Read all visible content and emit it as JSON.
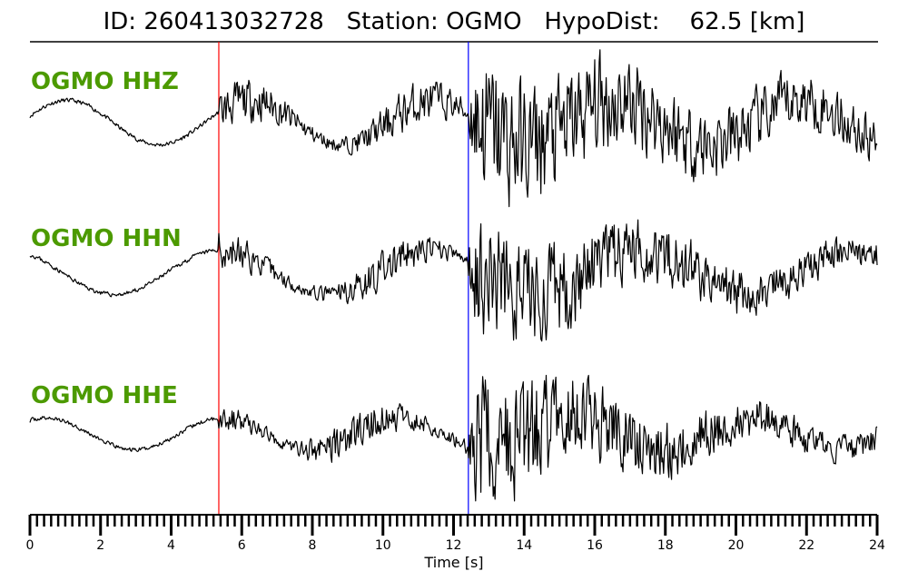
{
  "chart_data": {
    "type": "line",
    "title": "ID: 260413032728   Station: OGMO   HypoDist:    62.5 [km]",
    "xlabel": "Time [s]",
    "xlim": [
      0,
      24
    ],
    "major_ticks": [
      0,
      2,
      4,
      6,
      8,
      10,
      12,
      14,
      16,
      18,
      20,
      22,
      24
    ],
    "tick_labels": [
      "0",
      "2",
      "4",
      "6",
      "8",
      "10",
      "12",
      "14",
      "16",
      "18",
      "20",
      "22",
      "24"
    ],
    "minor_tick_step": 0.2,
    "picks": [
      {
        "name": "P",
        "time": 5.35,
        "color": "#ff0000"
      },
      {
        "name": "S",
        "time": 12.42,
        "color": "#0000ff"
      }
    ],
    "series": [
      {
        "name": "OGMO HHZ",
        "seed": 11,
        "lf_amp": 0.35,
        "lf_period": 5.2,
        "lf_phase": 0.3,
        "noise_pre": 0.03,
        "noise_p": 0.25,
        "noise_s": 1.0,
        "coda_decay": 0.12
      },
      {
        "name": "OGMO HHN",
        "seed": 23,
        "lf_amp": 0.35,
        "lf_period": 6.0,
        "lf_phase": 2.2,
        "noise_pre": 0.03,
        "noise_p": 0.22,
        "noise_s": 0.85,
        "coda_decay": 0.16
      },
      {
        "name": "OGMO HHE",
        "seed": 37,
        "lf_amp": 0.25,
        "lf_period": 5.0,
        "lf_phase": 1.0,
        "noise_pre": 0.03,
        "noise_p": 0.22,
        "noise_s": 1.0,
        "coda_decay": 0.2
      }
    ],
    "label_color": "#4c9a00",
    "grid": false
  }
}
